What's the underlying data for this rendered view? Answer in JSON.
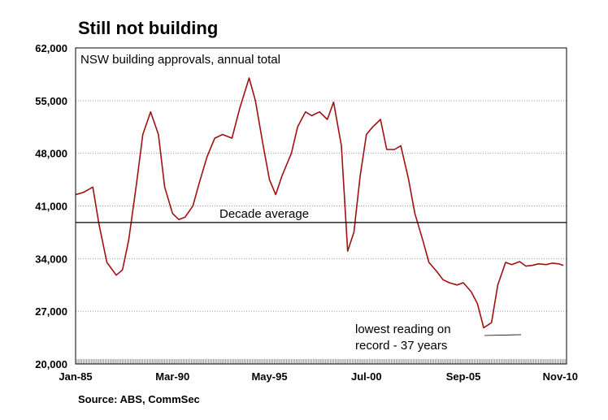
{
  "chart_data": {
    "type": "line",
    "title": "Still not building",
    "subtitle": "NSW building approvals, annual total",
    "source": "Source: ABS, CommSec",
    "xlabel": "",
    "ylabel": "",
    "ylim": [
      20000,
      62000
    ],
    "yticks": [
      20000,
      27000,
      34000,
      41000,
      48000,
      55000,
      62000
    ],
    "ytick_labels": [
      "20,000",
      "27,000",
      "34,000",
      "41,000",
      "48,000",
      "55,000",
      "62,000"
    ],
    "xlim": [
      "1985-01",
      "2011-03"
    ],
    "xtick_labels": [
      "Jan-85",
      "Mar-90",
      "May-95",
      "Jul-00",
      "Sep-05",
      "Nov-10"
    ],
    "xticks": [
      "1985-01",
      "1990-03",
      "1995-05",
      "2000-07",
      "2005-09",
      "2010-11"
    ],
    "grid": true,
    "line_color": "#a01010",
    "series": [
      {
        "x": [
          "1985-01",
          "1985-06",
          "1985-12",
          "1986-04",
          "1986-09",
          "1987-03",
          "1987-07",
          "1987-11",
          "1988-04",
          "1988-08",
          "1989-01",
          "1989-06",
          "1989-10",
          "1990-03",
          "1990-07",
          "1990-11",
          "1991-04",
          "1991-08",
          "1992-01",
          "1992-06",
          "1992-11",
          "1993-05",
          "1993-10",
          "1994-04",
          "1994-08",
          "1995-01",
          "1995-05",
          "1995-09",
          "1996-01",
          "1996-07",
          "1996-11",
          "1997-04",
          "1997-08",
          "1998-01",
          "1998-06",
          "1998-10",
          "1999-03",
          "1999-07",
          "1999-11",
          "2000-03",
          "2000-07",
          "2000-11",
          "2001-04",
          "2001-08",
          "2002-01",
          "2002-05",
          "2002-10",
          "2003-02",
          "2003-07",
          "2003-11",
          "2004-04",
          "2004-08",
          "2004-12",
          "2005-05",
          "2005-09",
          "2006-02",
          "2006-06",
          "2006-10",
          "2007-03",
          "2007-07",
          "2007-12",
          "2008-04",
          "2008-09",
          "2009-01",
          "2009-05",
          "2009-09",
          "2010-02",
          "2010-06",
          "2010-10",
          "2011-01"
        ],
        "values": [
          42500,
          42800,
          43500,
          38500,
          33500,
          31800,
          32500,
          36500,
          44000,
          50500,
          53500,
          50500,
          43500,
          40000,
          39200,
          39500,
          41000,
          44000,
          47500,
          50000,
          50500,
          50000,
          54000,
          58000,
          55000,
          49000,
          44500,
          42500,
          45000,
          48000,
          51500,
          53500,
          53000,
          53500,
          52500,
          54800,
          49000,
          35000,
          37500,
          45000,
          50500,
          51500,
          52500,
          48500,
          48500,
          49000,
          44500,
          40000,
          36500,
          33500,
          32300,
          31200,
          30800,
          30500,
          30800,
          29600,
          28000,
          24800,
          25500,
          30500,
          33500,
          33200,
          33600,
          33000,
          33100,
          33300,
          33200,
          33400,
          33300,
          33100
        ]
      }
    ],
    "hlines": [
      {
        "y": 38800,
        "label": "Decade average"
      }
    ],
    "annotations": [
      {
        "text_line1": "lowest reading on",
        "text_line2": "record - 37 years",
        "x": "2009-01",
        "y": 24000
      }
    ]
  }
}
